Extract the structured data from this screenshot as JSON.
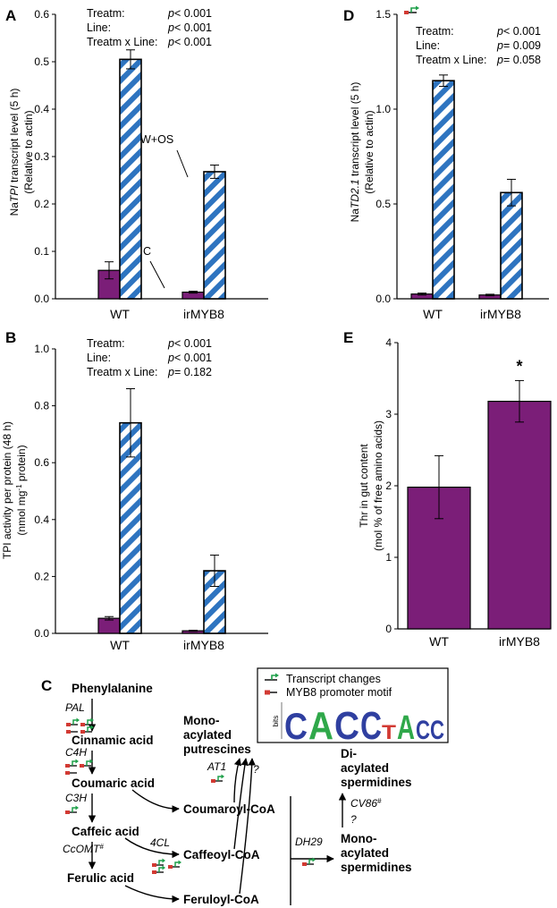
{
  "colors": {
    "control_bar": "#7b1e78",
    "treated_stripe": "#2e74c0",
    "treated_bg": "#ffffff",
    "pathway_arrow": "#000000",
    "promoter_motif": "#d23a33",
    "transcript_flag": "#1fa04a"
  },
  "chart_data": [
    {
      "id": "A",
      "panel_letter": "A",
      "type": "bar",
      "ylabel_parts": [
        "Na",
        "TPI",
        " transcript level (5 h)"
      ],
      "ylabel2": "(Relative to actin)",
      "ylim": [
        0,
        0.6
      ],
      "yticks": [
        0,
        0.1,
        0.2,
        0.3,
        0.4,
        0.5,
        0.6
      ],
      "ytick_labels": [
        "0.0",
        "0.1",
        "0.2",
        "0.3",
        "0.4",
        "0.5",
        "0.6"
      ],
      "categories": [
        "WT",
        "irMYB8"
      ],
      "series": [
        {
          "name": "C",
          "style": "solid",
          "values": [
            0.06,
            0.014
          ],
          "errors": [
            0.018,
            0.002
          ]
        },
        {
          "name": "W+OS",
          "style": "striped",
          "values": [
            0.505,
            0.268
          ],
          "errors": [
            0.02,
            0.014
          ]
        }
      ],
      "annotations": [
        {
          "text": "W+OS",
          "series": 1,
          "category": 1
        },
        {
          "text": "C",
          "series": 0,
          "category": 1
        }
      ],
      "stats": [
        {
          "term": "Treatm:",
          "p_symbol": "p",
          "p_value": "< 0.001"
        },
        {
          "term": "Line:",
          "p_symbol": "p",
          "p_value": "< 0.001"
        },
        {
          "term": "Treatm x Line:",
          "p_symbol": "p",
          "p_value": "< 0.001"
        }
      ],
      "grid": false,
      "has_gene_flag": false
    },
    {
      "id": "D",
      "panel_letter": "D",
      "type": "bar",
      "ylabel_parts": [
        "Na",
        "TD2.1",
        " transcript level (5 h)"
      ],
      "ylabel2": "(Relative to actin)",
      "ylim": [
        0,
        1.5
      ],
      "yticks": [
        0,
        0.5,
        1.0,
        1.5
      ],
      "ytick_labels": [
        "0.0",
        "0.5",
        "1.0",
        "1.5"
      ],
      "categories": [
        "WT",
        "irMYB8"
      ],
      "series": [
        {
          "name": "C",
          "style": "solid",
          "values": [
            0.025,
            0.02
          ],
          "errors": [
            0.005,
            0.004
          ]
        },
        {
          "name": "W+OS",
          "style": "striped",
          "values": [
            1.15,
            0.56
          ],
          "errors": [
            0.03,
            0.07
          ]
        }
      ],
      "annotations": [],
      "stats": [
        {
          "term": "Treatm:",
          "p_symbol": "p",
          "p_value": "< 0.001"
        },
        {
          "term": "Line:",
          "p_symbol": "p",
          "p_value": "= 0.009"
        },
        {
          "term": "Treatm x Line:",
          "p_symbol": "p",
          "p_value": "= 0.058"
        }
      ],
      "grid": false,
      "has_gene_flag": true
    },
    {
      "id": "B",
      "panel_letter": "B",
      "type": "bar",
      "ylabel_parts": [
        "TPI activity per protein (48 h)"
      ],
      "ylabel2_parts": [
        "(nmol mg",
        "-1",
        " protein)"
      ],
      "ylim": [
        0,
        1.0
      ],
      "yticks": [
        0,
        0.2,
        0.4,
        0.6,
        0.8,
        1.0
      ],
      "ytick_labels": [
        "0.0",
        "0.2",
        "0.4",
        "0.6",
        "0.8",
        "1.0"
      ],
      "categories": [
        "WT",
        "irMYB8"
      ],
      "series": [
        {
          "name": "C",
          "style": "solid",
          "values": [
            0.053,
            0.009
          ],
          "errors": [
            0.006,
            0.002
          ]
        },
        {
          "name": "W+OS",
          "style": "striped",
          "values": [
            0.74,
            0.22
          ],
          "errors": [
            0.12,
            0.055
          ]
        }
      ],
      "annotations": [],
      "stats": [
        {
          "term": "Treatm:",
          "p_symbol": "p",
          "p_value": "< 0.001"
        },
        {
          "term": "Line:",
          "p_symbol": "p",
          "p_value": "< 0.001"
        },
        {
          "term": "Treatm x Line:",
          "p_symbol": "p",
          "p_value": "= 0.182"
        }
      ],
      "grid": false,
      "has_gene_flag": false
    },
    {
      "id": "E",
      "panel_letter": "E",
      "type": "bar",
      "ylabel_parts": [
        "Thr in gut content"
      ],
      "ylabel2": "(mol % of free amino acids)",
      "ylim": [
        0,
        4
      ],
      "yticks": [
        0,
        1,
        2,
        3,
        4
      ],
      "ytick_labels": [
        "0",
        "1",
        "2",
        "3",
        "4"
      ],
      "categories": [
        "WT",
        "irMYB8"
      ],
      "series": [
        {
          "name": "",
          "style": "solid",
          "values": [
            1.98,
            3.18
          ],
          "errors": [
            0.44,
            0.29
          ]
        }
      ],
      "annotations": [
        {
          "text": "*",
          "series": 0,
          "category": 1
        }
      ],
      "stats": [],
      "grid": false,
      "has_gene_flag": false
    }
  ],
  "pathway": {
    "panel_letter": "C",
    "legend": {
      "transcript_changes": "Transcript changes",
      "promoter_motif": "MYB8 promoter motif",
      "logo_axis_label": "bits",
      "logo_letters": [
        "C",
        "A",
        "C",
        "C",
        "T",
        "A",
        "C",
        "C"
      ]
    },
    "compounds": {
      "phenylalanine": "Phenylalanine",
      "cinnamic": "Cinnamic acid",
      "coumaric": "Coumaric acid",
      "caffeic": "Caffeic acid",
      "ferulic": "Ferulic acid",
      "coumaroyl_coa": "Coumaroyl-CoA",
      "caffeoyl_coa": "Caffeoyl-CoA",
      "feruloyl_coa": "Feruloyl-CoA",
      "mono_putrescines": [
        "Mono-",
        "acylated",
        "putrescines"
      ],
      "di_spermidines": [
        "Di-",
        "acylated",
        "spermidines"
      ],
      "mono_spermidines": [
        "Mono-",
        "acylated",
        "spermidines"
      ]
    },
    "enzymes": {
      "pal": "PAL",
      "c4h": "C4H",
      "c3h": "C3H",
      "ccomt": "CcOMT",
      "ccomt_mark": "#",
      "four_cl": "4CL",
      "at1": "AT1",
      "at1_unknown": "?",
      "dh29": "DH29",
      "cv86": "CV86",
      "cv86_mark": "#",
      "cv86_unknown": "?"
    }
  }
}
